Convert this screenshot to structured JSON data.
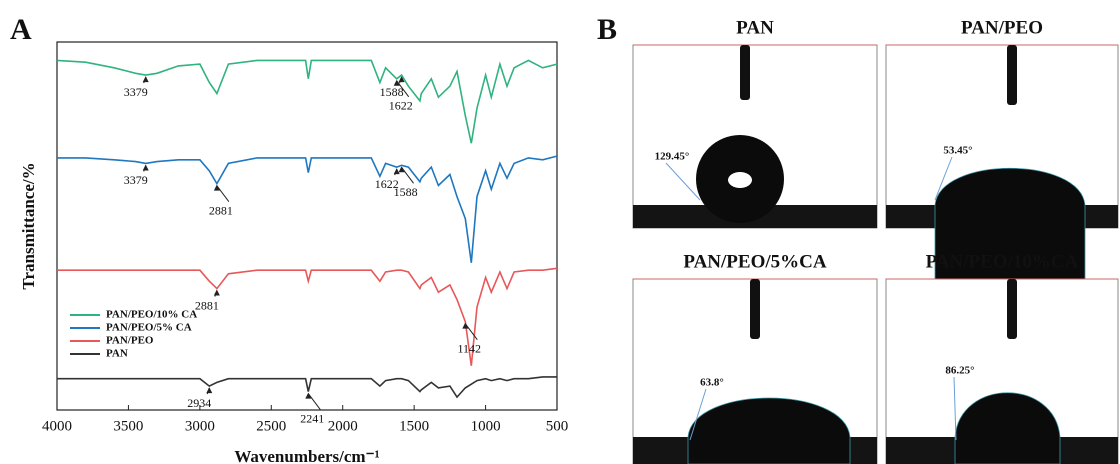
{
  "chart_data": {
    "type": "line",
    "panel_label": "A",
    "xlabel": "Wavenumbers/cm⁻¹",
    "ylabel": "Transmittance/%",
    "xlim": [
      4000,
      500
    ],
    "xticks": [
      4000,
      3500,
      3000,
      2500,
      2000,
      1500,
      1000,
      500
    ],
    "ylim": [
      0,
      100
    ],
    "legend": "lower left",
    "x": [
      4000,
      3800,
      3600,
      3450,
      3379,
      3300,
      3150,
      3000,
      2934,
      2881,
      2800,
      2600,
      2400,
      2260,
      2241,
      2220,
      2000,
      1800,
      1740,
      1700,
      1622,
      1588,
      1540,
      1460,
      1450,
      1380,
      1330,
      1250,
      1200,
      1142,
      1100,
      1060,
      1000,
      960,
      900,
      850,
      800,
      700,
      600,
      500
    ],
    "series": [
      {
        "name": "PAN/PEO/10% CA",
        "color": "#2fb37f",
        "peaks": [
          3379,
          1622,
          1588
        ],
        "values": [
          95,
          94.5,
          93,
          91.5,
          91,
          91.5,
          93.5,
          94,
          89,
          86,
          94,
          95,
          95,
          95,
          90,
          95,
          95,
          95,
          89,
          93,
          90,
          91,
          88,
          84,
          86,
          90,
          85,
          88,
          92,
          80,
          72.5,
          82,
          91,
          85,
          94,
          88,
          93,
          95,
          93,
          94
        ]
      },
      {
        "name": "PAN/PEO/5% CA",
        "color": "#1f77c0",
        "peaks": [
          3379,
          2881,
          1622,
          1588
        ],
        "values": [
          68.5,
          68.5,
          68,
          67.5,
          67,
          67.5,
          68,
          68,
          65,
          61.5,
          67,
          68.5,
          68.5,
          68.5,
          64.5,
          68.5,
          68.5,
          68.5,
          63.5,
          67,
          66,
          66.5,
          66,
          62,
          63,
          66,
          61,
          64,
          58,
          52,
          40,
          58,
          65,
          60,
          67,
          63,
          67,
          68.5,
          68,
          69
        ]
      },
      {
        "name": "PAN/PEO",
        "color": "#e8585a",
        "peaks": [
          2881,
          1142
        ],
        "values": [
          38,
          38,
          38,
          38,
          38,
          38,
          38,
          38,
          35,
          33,
          37,
          38,
          38,
          38,
          35,
          38,
          38,
          38,
          35,
          37.5,
          38,
          38,
          37.5,
          33,
          34,
          36,
          32,
          34,
          30,
          24,
          12,
          28,
          36,
          32,
          37.5,
          33,
          37.5,
          38,
          38,
          38.5
        ]
      },
      {
        "name": "PAN",
        "color": "#333333",
        "peaks": [
          2934,
          2241
        ],
        "values": [
          8.5,
          8.5,
          8.5,
          8.5,
          8.5,
          8.5,
          8.5,
          8.5,
          6.5,
          7.5,
          8.5,
          8.5,
          8.5,
          8.5,
          5,
          8.5,
          8.5,
          8.5,
          6.5,
          8,
          8.5,
          8.5,
          8,
          5,
          5.5,
          7.5,
          6,
          6.5,
          3.5,
          6,
          7,
          8,
          8.5,
          8,
          8.5,
          8,
          8.5,
          8.5,
          9,
          9
        ]
      }
    ]
  },
  "panel_b": {
    "panel_label": "B",
    "images": [
      {
        "title": "PAN",
        "contact_angle": "129.45°"
      },
      {
        "title": "PAN/PEO",
        "contact_angle": "53.45°"
      },
      {
        "title": "PAN/PEO/5%CA",
        "contact_angle": "63.8°"
      },
      {
        "title": "PAN/PEO/10%CA",
        "contact_angle": "86.25°"
      }
    ]
  }
}
